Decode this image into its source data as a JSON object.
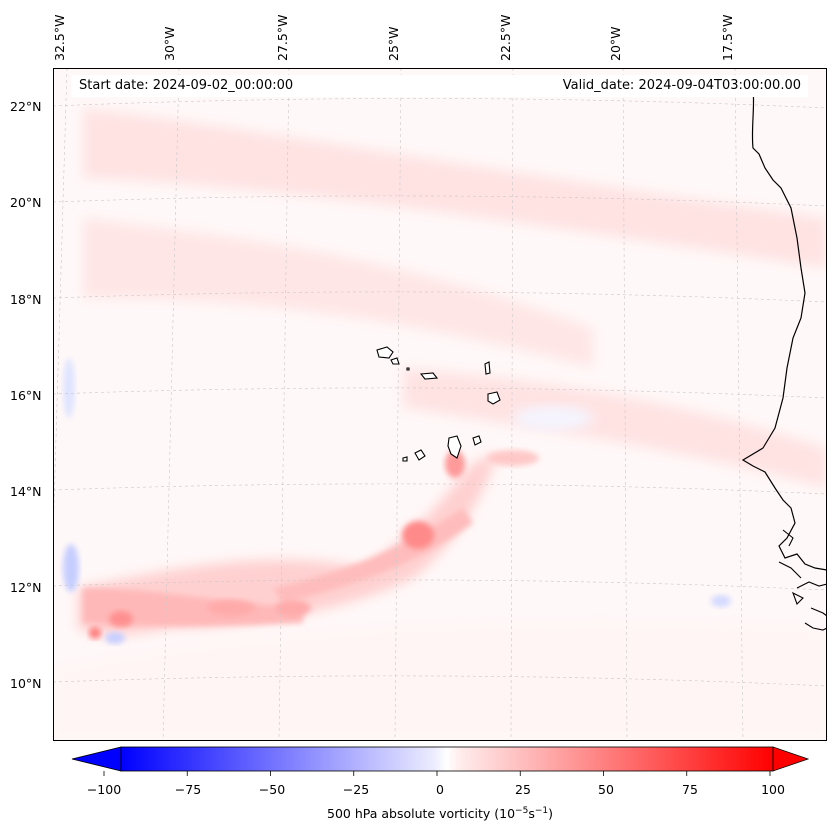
{
  "map": {
    "start_date": "Start date: 2024-09-02_00:00:00",
    "valid_date": "Valid_date: 2024-09-04T03:00:00.00",
    "longitude_labels": [
      "32.5°W",
      "30°W",
      "27.5°W",
      "25°W",
      "22.5°W",
      "20°W",
      "17.5°W"
    ],
    "latitude_labels": [
      "22°N",
      "20°N",
      "18°N",
      "16°N",
      "14°N",
      "12°N",
      "10°N"
    ],
    "field": "500 hPa absolute vorticity",
    "colors": {
      "negative": "#0000ff",
      "positive": "#ff0000",
      "neutral": "#ffffff",
      "coast": "#000000"
    }
  },
  "colorbar": {
    "label_text": "500 hPa absolute vorticity (10",
    "label_exp1": "−5",
    "label_mid": "s",
    "label_exp2": "−1",
    "label_close": ")",
    "ticks": [
      "−100",
      "−75",
      "−50",
      "−25",
      "0",
      "25",
      "50",
      "75",
      "100"
    ],
    "min": -100,
    "max": 100,
    "extend": "both"
  }
}
